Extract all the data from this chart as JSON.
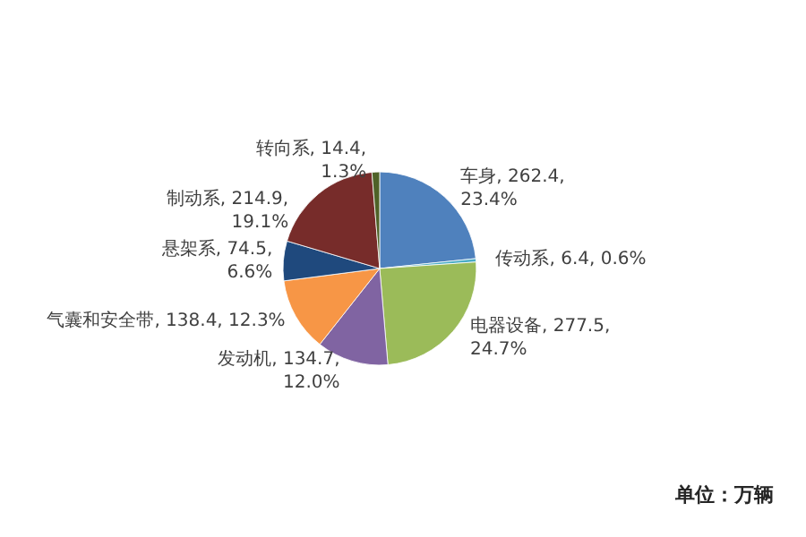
{
  "chart_data": {
    "type": "pie",
    "categories": [
      "车身",
      "传动系",
      "电器设备",
      "发动机",
      "气囊和安全带",
      "悬架系",
      "制动系",
      "转向系"
    ],
    "values": [
      262.4,
      6.4,
      277.5,
      134.7,
      138.4,
      74.5,
      214.9,
      14.4
    ],
    "colors": [
      "#4f81bd",
      "#4bacc6",
      "#9bbb59",
      "#8064a2",
      "#f79646",
      "#1f497d",
      "#772c2a",
      "#4f6228"
    ],
    "value_labels": [
      "262.4,\n23.4%",
      "6.4, 0.6%",
      "277.5,\n24.7%",
      "134.7,\n12.0%",
      "138.4, 12.3%",
      "74.5,\n6.6%",
      "214.9,\n19.1%",
      "14.4,\n1.3%"
    ],
    "legend": false,
    "annotations": [
      "单位：万辆"
    ]
  }
}
